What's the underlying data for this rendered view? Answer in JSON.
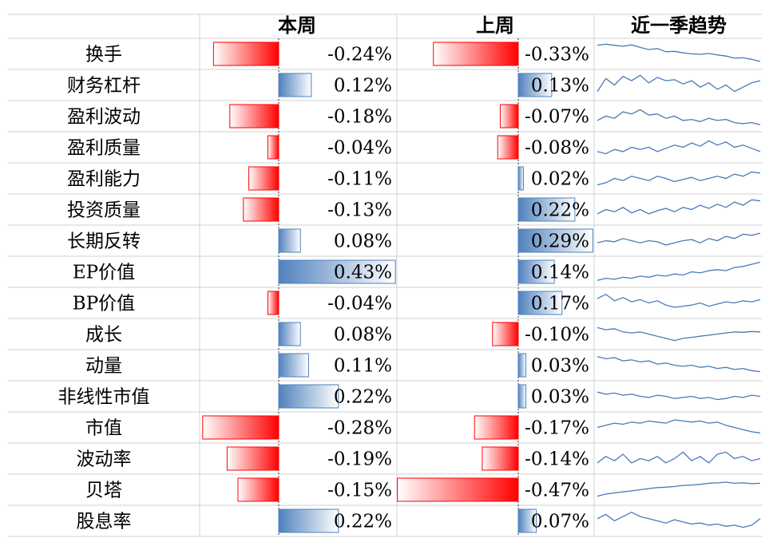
{
  "headers": {
    "this_week": "本周",
    "last_week": "上周",
    "trend": "近一季趋势"
  },
  "colors": {
    "negative": "#ff0000",
    "positive": "#4f81bd",
    "sparkline": "#4a7ab8",
    "grid": "#d0d0d0"
  },
  "chart_data": [
    {
      "type": "bar",
      "title": "本周",
      "unit": "%",
      "categories": [
        "换手",
        "财务杠杆",
        "盈利波动",
        "盈利质量",
        "盈利能力",
        "投资质量",
        "长期反转",
        "EP价值",
        "BP价值",
        "成长",
        "动量",
        "非线性市值",
        "市值",
        "波动率",
        "贝塔",
        "股息率"
      ],
      "values": [
        -0.24,
        0.12,
        -0.18,
        -0.04,
        -0.11,
        -0.13,
        0.08,
        0.43,
        -0.04,
        0.08,
        0.11,
        0.22,
        -0.28,
        -0.19,
        -0.15,
        0.22
      ],
      "labels": [
        "-0.24%",
        "0.12%",
        "-0.18%",
        "-0.04%",
        "-0.11%",
        "-0.13%",
        "0.08%",
        "0.43%",
        "-0.04%",
        "0.08%",
        "0.11%",
        "0.22%",
        "-0.28%",
        "-0.19%",
        "-0.15%",
        "0.22%"
      ]
    },
    {
      "type": "bar",
      "title": "上周",
      "unit": "%",
      "categories": [
        "换手",
        "财务杠杆",
        "盈利波动",
        "盈利质量",
        "盈利能力",
        "投资质量",
        "长期反转",
        "EP价值",
        "BP价值",
        "成长",
        "动量",
        "非线性市值",
        "市值",
        "波动率",
        "贝塔",
        "股息率"
      ],
      "values": [
        -0.33,
        0.13,
        -0.07,
        -0.08,
        0.02,
        0.22,
        0.29,
        0.14,
        0.17,
        -0.1,
        0.03,
        0.03,
        -0.17,
        -0.14,
        -0.47,
        0.07
      ],
      "labels": [
        "-0.33%",
        "0.13%",
        "-0.07%",
        "-0.08%",
        "0.02%",
        "0.22%",
        "0.29%",
        "0.14%",
        "0.17%",
        "-0.10%",
        "0.03%",
        "0.03%",
        "-0.17%",
        "-0.14%",
        "-0.47%",
        "0.07%"
      ]
    },
    {
      "type": "line",
      "title": "近一季趋势",
      "series": [
        {
          "values": [
            0.9,
            0.95,
            0.9,
            0.85,
            0.92,
            0.8,
            0.7,
            0.75,
            0.6,
            0.62,
            0.55,
            0.5,
            0.48,
            0.52,
            0.45,
            0.4,
            0.3,
            0.32,
            0.25,
            0.15
          ]
        },
        {
          "values": [
            0.2,
            0.8,
            0.5,
            0.9,
            0.7,
            0.95,
            0.6,
            0.85,
            0.7,
            0.75,
            0.55,
            0.7,
            0.4,
            0.6,
            0.3,
            0.5,
            0.2,
            0.4,
            0.6,
            0.7
          ]
        },
        {
          "values": [
            0.3,
            0.5,
            0.4,
            0.7,
            0.6,
            0.8,
            0.55,
            0.6,
            0.4,
            0.5,
            0.3,
            0.35,
            0.25,
            0.4,
            0.3,
            0.35,
            0.2,
            0.15,
            0.2,
            0.1
          ]
        },
        {
          "values": [
            0.3,
            0.2,
            0.4,
            0.3,
            0.5,
            0.4,
            0.5,
            0.3,
            0.45,
            0.6,
            0.5,
            0.7,
            0.55,
            0.8,
            0.6,
            0.75,
            0.5,
            0.6,
            0.45,
            0.3
          ]
        },
        {
          "values": [
            0.2,
            0.3,
            0.5,
            0.4,
            0.6,
            0.5,
            0.4,
            0.6,
            0.5,
            0.35,
            0.45,
            0.55,
            0.4,
            0.5,
            0.6,
            0.5,
            0.7,
            0.6,
            0.8,
            0.75
          ]
        },
        {
          "values": [
            0.3,
            0.5,
            0.4,
            0.6,
            0.35,
            0.5,
            0.3,
            0.45,
            0.55,
            0.4,
            0.6,
            0.5,
            0.7,
            0.55,
            0.75,
            0.6,
            0.85,
            0.7,
            0.95,
            0.9
          ]
        },
        {
          "values": [
            0.4,
            0.5,
            0.45,
            0.6,
            0.5,
            0.4,
            0.5,
            0.45,
            0.3,
            0.4,
            0.5,
            0.55,
            0.4,
            0.6,
            0.5,
            0.7,
            0.6,
            0.8,
            0.75,
            0.85
          ]
        },
        {
          "values": [
            0.1,
            0.2,
            0.15,
            0.25,
            0.2,
            0.3,
            0.25,
            0.35,
            0.3,
            0.4,
            0.35,
            0.5,
            0.45,
            0.55,
            0.6,
            0.55,
            0.7,
            0.75,
            0.85,
            0.95
          ]
        },
        {
          "values": [
            0.7,
            0.9,
            0.6,
            0.75,
            0.55,
            0.65,
            0.5,
            0.6,
            0.4,
            0.3,
            0.35,
            0.4,
            0.5,
            0.35,
            0.45,
            0.55,
            0.5,
            0.6,
            0.55,
            0.65
          ]
        },
        {
          "values": [
            0.8,
            0.7,
            0.75,
            0.6,
            0.55,
            0.6,
            0.5,
            0.4,
            0.3,
            0.2,
            0.3,
            0.35,
            0.4,
            0.45,
            0.5,
            0.55,
            0.6,
            0.58,
            0.62,
            0.6
          ]
        },
        {
          "values": [
            0.9,
            0.8,
            0.85,
            0.7,
            0.75,
            0.65,
            0.7,
            0.55,
            0.6,
            0.5,
            0.45,
            0.5,
            0.4,
            0.45,
            0.35,
            0.4,
            0.3,
            0.35,
            0.25,
            0.2
          ]
        },
        {
          "values": [
            0.7,
            0.6,
            0.65,
            0.55,
            0.6,
            0.5,
            0.45,
            0.55,
            0.5,
            0.4,
            0.45,
            0.5,
            0.4,
            0.45,
            0.35,
            0.4,
            0.5,
            0.45,
            0.55,
            0.5
          ]
        },
        {
          "values": [
            0.5,
            0.6,
            0.7,
            0.65,
            0.75,
            0.7,
            0.8,
            0.75,
            0.7,
            0.85,
            0.8,
            0.75,
            0.8,
            0.7,
            0.75,
            0.6,
            0.5,
            0.4,
            0.3,
            0.25
          ]
        },
        {
          "values": [
            0.3,
            0.6,
            0.4,
            0.7,
            0.3,
            0.5,
            0.4,
            0.6,
            0.3,
            0.5,
            0.8,
            0.4,
            0.6,
            0.3,
            0.7,
            0.8,
            0.5,
            0.6,
            0.4,
            0.5
          ]
        },
        {
          "values": [
            0.2,
            0.3,
            0.35,
            0.4,
            0.45,
            0.5,
            0.55,
            0.6,
            0.62,
            0.65,
            0.7,
            0.72,
            0.75,
            0.8,
            0.82,
            0.85,
            0.8,
            0.82,
            0.78,
            0.8
          ]
        },
        {
          "values": [
            0.6,
            0.8,
            0.5,
            0.7,
            0.9,
            0.7,
            0.6,
            0.5,
            0.4,
            0.55,
            0.45,
            0.35,
            0.4,
            0.3,
            0.35,
            0.25,
            0.3,
            0.2,
            0.3,
            0.6
          ]
        }
      ]
    }
  ]
}
